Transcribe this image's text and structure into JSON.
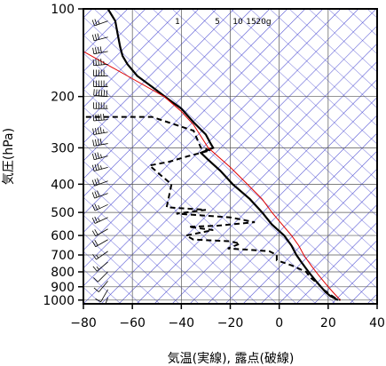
{
  "chart_data": {
    "type": "line",
    "title": "",
    "xlabel": "気温(実線), 露点(破線)",
    "ylabel": "気圧(hPa)",
    "xlim": [
      -80,
      40
    ],
    "ylim": [
      1030,
      100
    ],
    "y_scale": "log",
    "x_ticks": [
      -80,
      -60,
      -40,
      -20,
      0,
      20,
      40
    ],
    "x_tick_labels": [
      "−80",
      "−60",
      "−40",
      "−20",
      "0",
      "20",
      "40"
    ],
    "y_ticks": [
      100,
      200,
      300,
      400,
      500,
      600,
      700,
      800,
      900,
      1000
    ],
    "y_tick_labels": [
      "100",
      "200",
      "300",
      "400",
      "500",
      "600",
      "700",
      "800",
      "900",
      "1000"
    ],
    "mixing_ratio_labels": [
      "1",
      "5",
      "10",
      "15",
      "20g"
    ],
    "mixing_ratio_values": [
      1,
      5,
      10,
      15,
      20
    ],
    "colors": {
      "temperature": "#000000",
      "dewpoint": "#000000",
      "parcel": "#e00000",
      "adiabats": "#3333cc",
      "grid": "#555555",
      "wind_barbs": "#000000"
    },
    "series": [
      {
        "style": "solid",
        "points": [
          [
            -70,
            100
          ],
          [
            -67,
            110
          ],
          [
            -66,
            122
          ],
          [
            -65,
            135
          ],
          [
            -64,
            145
          ],
          [
            -62,
            155
          ],
          [
            -58,
            170
          ],
          [
            -52,
            185
          ],
          [
            -45,
            205
          ],
          [
            -40,
            220
          ],
          [
            -35,
            245
          ],
          [
            -30,
            270
          ],
          [
            -28,
            290
          ],
          [
            -27,
            300
          ],
          [
            -32,
            312
          ],
          [
            -29,
            330
          ],
          [
            -24,
            360
          ],
          [
            -19,
            400
          ],
          [
            -12,
            450
          ],
          [
            -7,
            500
          ],
          [
            -3,
            550
          ],
          [
            2,
            600
          ],
          [
            5,
            650
          ],
          [
            7,
            700
          ],
          [
            9,
            740
          ],
          [
            11,
            780
          ],
          [
            13,
            820
          ],
          [
            15,
            860
          ],
          [
            17,
            900
          ],
          [
            19,
            940
          ],
          [
            21,
            970
          ],
          [
            24,
            1000
          ]
        ]
      },
      {
        "style": "dashed",
        "points": [
          [
            -79,
            235
          ],
          [
            -52,
            235
          ],
          [
            -35,
            262
          ],
          [
            -32,
            300
          ],
          [
            -28,
            306
          ],
          [
            -37,
            320
          ],
          [
            -45,
            335
          ],
          [
            -53,
            345
          ],
          [
            -48,
            375
          ],
          [
            -44,
            400
          ],
          [
            -46,
            480
          ],
          [
            -30,
            490
          ],
          [
            -42,
            505
          ],
          [
            -20,
            520
          ],
          [
            -10,
            540
          ],
          [
            -25,
            555
          ],
          [
            -37,
            560
          ],
          [
            -27,
            575
          ],
          [
            -38,
            600
          ],
          [
            -35,
            620
          ],
          [
            -20,
            628
          ],
          [
            -16,
            640
          ],
          [
            -21,
            665
          ],
          [
            -12,
            672
          ],
          [
            -4,
            680
          ],
          [
            -1,
            700
          ],
          [
            -1,
            730
          ],
          [
            5,
            760
          ],
          [
            11,
            800
          ],
          [
            13,
            840
          ],
          [
            16,
            880
          ],
          [
            18,
            920
          ],
          [
            21,
            960
          ],
          [
            23,
            985
          ],
          [
            25,
            1000
          ]
        ]
      },
      {
        "style": "solid-thin",
        "points": [
          [
            -80,
            140
          ],
          [
            -62,
            170
          ],
          [
            -47,
            200
          ],
          [
            -40,
            225
          ],
          [
            -35,
            250
          ],
          [
            -29,
            300
          ],
          [
            -20,
            350
          ],
          [
            -13,
            400
          ],
          [
            -7,
            450
          ],
          [
            -3,
            500
          ],
          [
            2,
            560
          ],
          [
            5,
            600
          ],
          [
            8,
            650
          ],
          [
            10,
            700
          ],
          [
            13,
            760
          ],
          [
            16,
            820
          ],
          [
            19,
            880
          ],
          [
            22,
            940
          ],
          [
            25,
            1000
          ]
        ]
      }
    ],
    "wind_barbs": [
      {
        "p": 110,
        "dir": 250,
        "spd": 25
      },
      {
        "p": 125,
        "dir": 255,
        "spd": 30
      },
      {
        "p": 140,
        "dir": 260,
        "spd": 40
      },
      {
        "p": 155,
        "dir": 265,
        "spd": 45
      },
      {
        "p": 170,
        "dir": 270,
        "spd": 50
      },
      {
        "p": 185,
        "dir": 270,
        "spd": 55
      },
      {
        "p": 200,
        "dir": 275,
        "spd": 60
      },
      {
        "p": 220,
        "dir": 270,
        "spd": 55
      },
      {
        "p": 240,
        "dir": 265,
        "spd": 50
      },
      {
        "p": 265,
        "dir": 260,
        "spd": 45
      },
      {
        "p": 290,
        "dir": 260,
        "spd": 40
      },
      {
        "p": 320,
        "dir": 255,
        "spd": 35
      },
      {
        "p": 350,
        "dir": 255,
        "spd": 35
      },
      {
        "p": 390,
        "dir": 250,
        "spd": 30
      },
      {
        "p": 430,
        "dir": 250,
        "spd": 30
      },
      {
        "p": 470,
        "dir": 245,
        "spd": 25
      },
      {
        "p": 520,
        "dir": 245,
        "spd": 25
      },
      {
        "p": 570,
        "dir": 240,
        "spd": 20
      },
      {
        "p": 620,
        "dir": 240,
        "spd": 20
      },
      {
        "p": 680,
        "dir": 235,
        "spd": 15
      },
      {
        "p": 740,
        "dir": 230,
        "spd": 15
      },
      {
        "p": 800,
        "dir": 225,
        "spd": 10
      },
      {
        "p": 860,
        "dir": 220,
        "spd": 10
      },
      {
        "p": 920,
        "dir": 210,
        "spd": 10
      },
      {
        "p": 980,
        "dir": 200,
        "spd": 5
      }
    ]
  }
}
